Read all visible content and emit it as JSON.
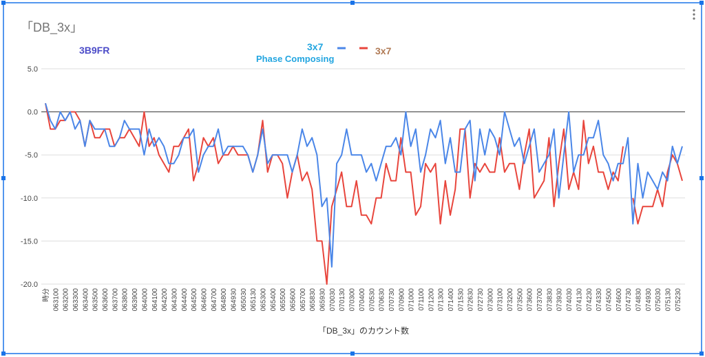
{
  "chart_data": {
    "type": "line",
    "title": "「DB_3x」",
    "annotations": [
      "3B9FR",
      "Phase Composing"
    ],
    "x_label": "「DB_3x」のカウント数",
    "categories": [
      "時分",
      null,
      "063100",
      null,
      "063200",
      null,
      "063300",
      null,
      "063400",
      null,
      "063500",
      null,
      "063600",
      null,
      "063700",
      null,
      "063800",
      null,
      "063900",
      null,
      "064000",
      null,
      "064100",
      null,
      "064200",
      null,
      "064300",
      null,
      "064400",
      null,
      "064500",
      null,
      "064600",
      null,
      "064700",
      null,
      "064800",
      null,
      "064930",
      null,
      "065030",
      null,
      "065130",
      null,
      "065300",
      null,
      "065400",
      null,
      "065500",
      null,
      "065600",
      null,
      "065700",
      null,
      "065830",
      null,
      "065930",
      null,
      "070030",
      null,
      "070130",
      null,
      "070300",
      null,
      "070400",
      null,
      "070530",
      null,
      "070630",
      null,
      "070730",
      null,
      "070900",
      null,
      "071000",
      null,
      "071100",
      null,
      "071200",
      null,
      "071300",
      null,
      "071400",
      null,
      "071530",
      null,
      "072630",
      null,
      "072730",
      null,
      "073000",
      null,
      "073100",
      null,
      "073200",
      null,
      "073500",
      null,
      "073600",
      null,
      "073700",
      null,
      "073830",
      null,
      "073930",
      null,
      "074030",
      null,
      "074130",
      null,
      "074230",
      null,
      "074330",
      null,
      "074500",
      null,
      "074600",
      null,
      "074730",
      null,
      "074830",
      null,
      "074930",
      null,
      "075030",
      null,
      "075130",
      null,
      "075230",
      null
    ],
    "series": [
      {
        "name": "3x7",
        "color": "#4a86e8",
        "values": [
          1,
          -1,
          -2,
          0,
          -1,
          0,
          -2,
          -1,
          -4,
          -1,
          -2,
          -2,
          -2,
          -4,
          -4,
          -3,
          -1,
          -2,
          -2,
          -2,
          -5,
          -2,
          -4,
          -3,
          -4,
          -6,
          -6,
          -5,
          -3,
          -3,
          -2,
          -7,
          -5,
          -4,
          -4,
          -2,
          -5,
          -4,
          -4,
          -4,
          -4,
          -5,
          -7,
          -5,
          -2,
          -6,
          -5,
          -5,
          -5,
          -5,
          -7,
          -5,
          -2,
          -4,
          -3,
          -5,
          -11,
          -10,
          -18,
          -6,
          -5,
          -2,
          -5,
          -5,
          -5,
          -7,
          -6,
          -8,
          -6,
          -4,
          -4,
          -3,
          -5,
          0,
          -4,
          -2,
          -7,
          -5,
          -2,
          -3,
          -1,
          -6,
          -3,
          -7,
          -7,
          -2,
          -1,
          -8,
          -2,
          -5,
          -2,
          -3,
          -5,
          0,
          -2,
          -4,
          -3,
          -6,
          -4,
          -2,
          -7,
          -6,
          -5,
          -2,
          -10,
          -5,
          0,
          -7,
          -5,
          -5,
          -3,
          -3,
          -1,
          -5,
          -6,
          -8,
          -6,
          -6,
          -3,
          -13,
          -6,
          -10,
          -7,
          -8,
          -9,
          -7,
          -8,
          -4,
          -6,
          -4
        ]
      },
      {
        "name": "3x7",
        "color": "#e8453c",
        "values": [
          1,
          -2,
          -2,
          -1,
          -1,
          0,
          0,
          -1,
          -4,
          -1,
          -3,
          -3,
          -2,
          -2,
          -4,
          -3,
          -3,
          -2,
          -3,
          -4,
          0,
          -4,
          -3,
          -5,
          -6,
          -7,
          -4,
          -4,
          -3,
          -2,
          -8,
          -6,
          -3,
          -4,
          -3,
          -6,
          -5,
          -5,
          -4,
          -5,
          -5,
          -5,
          -7,
          -5,
          -1,
          -7,
          -5,
          -5,
          -6,
          -10,
          -7,
          -5,
          -8,
          -7,
          -9,
          -15,
          -15,
          -20,
          -11,
          -9,
          -7,
          -11,
          -11,
          -8,
          -12,
          -12,
          -13,
          -10,
          -10,
          -6,
          -8,
          -8,
          -3,
          -7,
          -7,
          -12,
          -11,
          -6,
          -7,
          -6,
          -13,
          -8,
          -12,
          -9,
          -2,
          -2,
          -10,
          -6,
          -7,
          -6,
          -7,
          -7,
          -3,
          -7,
          -6,
          -6,
          -9,
          -5,
          -2,
          -10,
          -9,
          -8,
          -3,
          -11,
          -6,
          -2,
          -9,
          -7,
          -9,
          -1,
          -6,
          -4,
          -7,
          -7,
          -9,
          -7,
          -8,
          -4,
          null,
          -10,
          -13,
          -11,
          -11,
          -11,
          -9,
          -11,
          -7,
          -5,
          -6,
          -8
        ]
      }
    ],
    "ylim": [
      -20,
      5
    ],
    "yticks": [
      {
        "value": -20,
        "label": "-20.0"
      },
      {
        "value": -15,
        "label": "-15.0"
      },
      {
        "value": -10,
        "label": "-10.0"
      },
      {
        "value": -5,
        "label": "-5.0"
      },
      {
        "value": 0,
        "label": "0.0"
      },
      {
        "value": 5,
        "label": "5.0"
      }
    ],
    "grid": true
  }
}
